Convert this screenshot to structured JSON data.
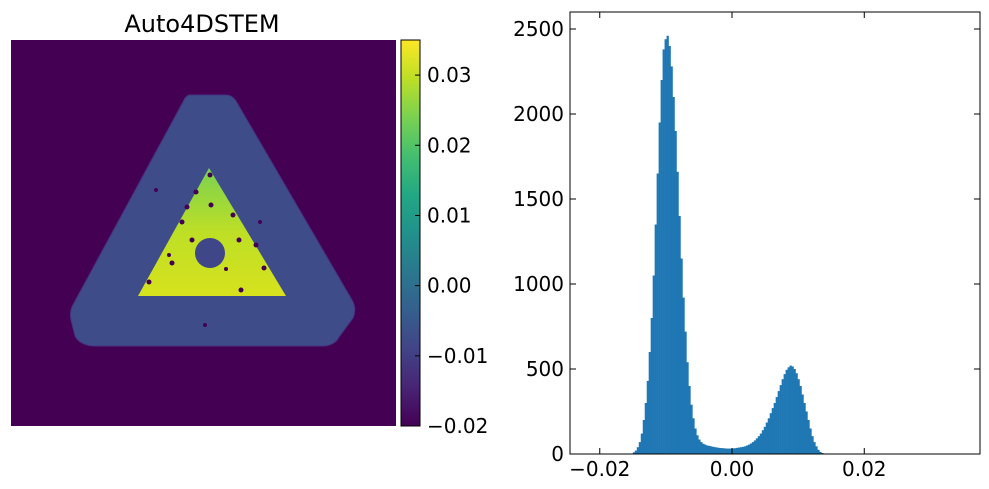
{
  "image_panel": {
    "title": "Auto4DSTEM",
    "colormap": "viridis"
  },
  "chart_data": [
    {
      "type": "colorbar",
      "range": [
        -0.02,
        0.035
      ],
      "ticks": [
        -0.02,
        -0.01,
        0.0,
        0.01,
        0.02,
        0.03
      ],
      "tick_labels": [
        "−0.02",
        "−0.01",
        "0.00",
        "0.01",
        "0.02",
        "0.03"
      ]
    },
    {
      "type": "bar",
      "title": "",
      "xlabel": "",
      "ylabel": "",
      "xlim": [
        -0.0245,
        0.0375
      ],
      "ylim": [
        0,
        2600
      ],
      "x_ticks": [
        -0.02,
        0.0,
        0.02
      ],
      "x_tick_labels": [
        "−0.02",
        "0.00",
        "0.02"
      ],
      "y_ticks": [
        0,
        500,
        1000,
        1500,
        2000,
        2500
      ],
      "y_tick_labels": [
        "0",
        "500",
        "1000",
        "1500",
        "2000",
        "2500"
      ],
      "bar_color": "#1f77b4",
      "bin_start": -0.015,
      "bin_width": 0.0003,
      "values": [
        10,
        20,
        40,
        70,
        120,
        200,
        300,
        430,
        600,
        800,
        1050,
        1350,
        1650,
        1950,
        2200,
        2380,
        2440,
        2460,
        2400,
        2280,
        2100,
        1900,
        1660,
        1400,
        1150,
        920,
        720,
        540,
        400,
        290,
        210,
        150,
        110,
        85,
        70,
        60,
        55,
        50,
        48,
        45,
        42,
        40,
        38,
        36,
        35,
        34,
        33,
        32,
        32,
        32,
        33,
        34,
        36,
        38,
        40,
        42,
        45,
        50,
        55,
        62,
        70,
        80,
        92,
        105,
        120,
        140,
        160,
        185,
        210,
        240,
        270,
        300,
        335,
        370,
        405,
        440,
        470,
        495,
        510,
        520,
        515,
        500,
        475,
        440,
        400,
        350,
        300,
        250,
        200,
        150,
        105,
        70,
        45,
        25,
        12,
        6,
        3,
        1
      ]
    }
  ]
}
